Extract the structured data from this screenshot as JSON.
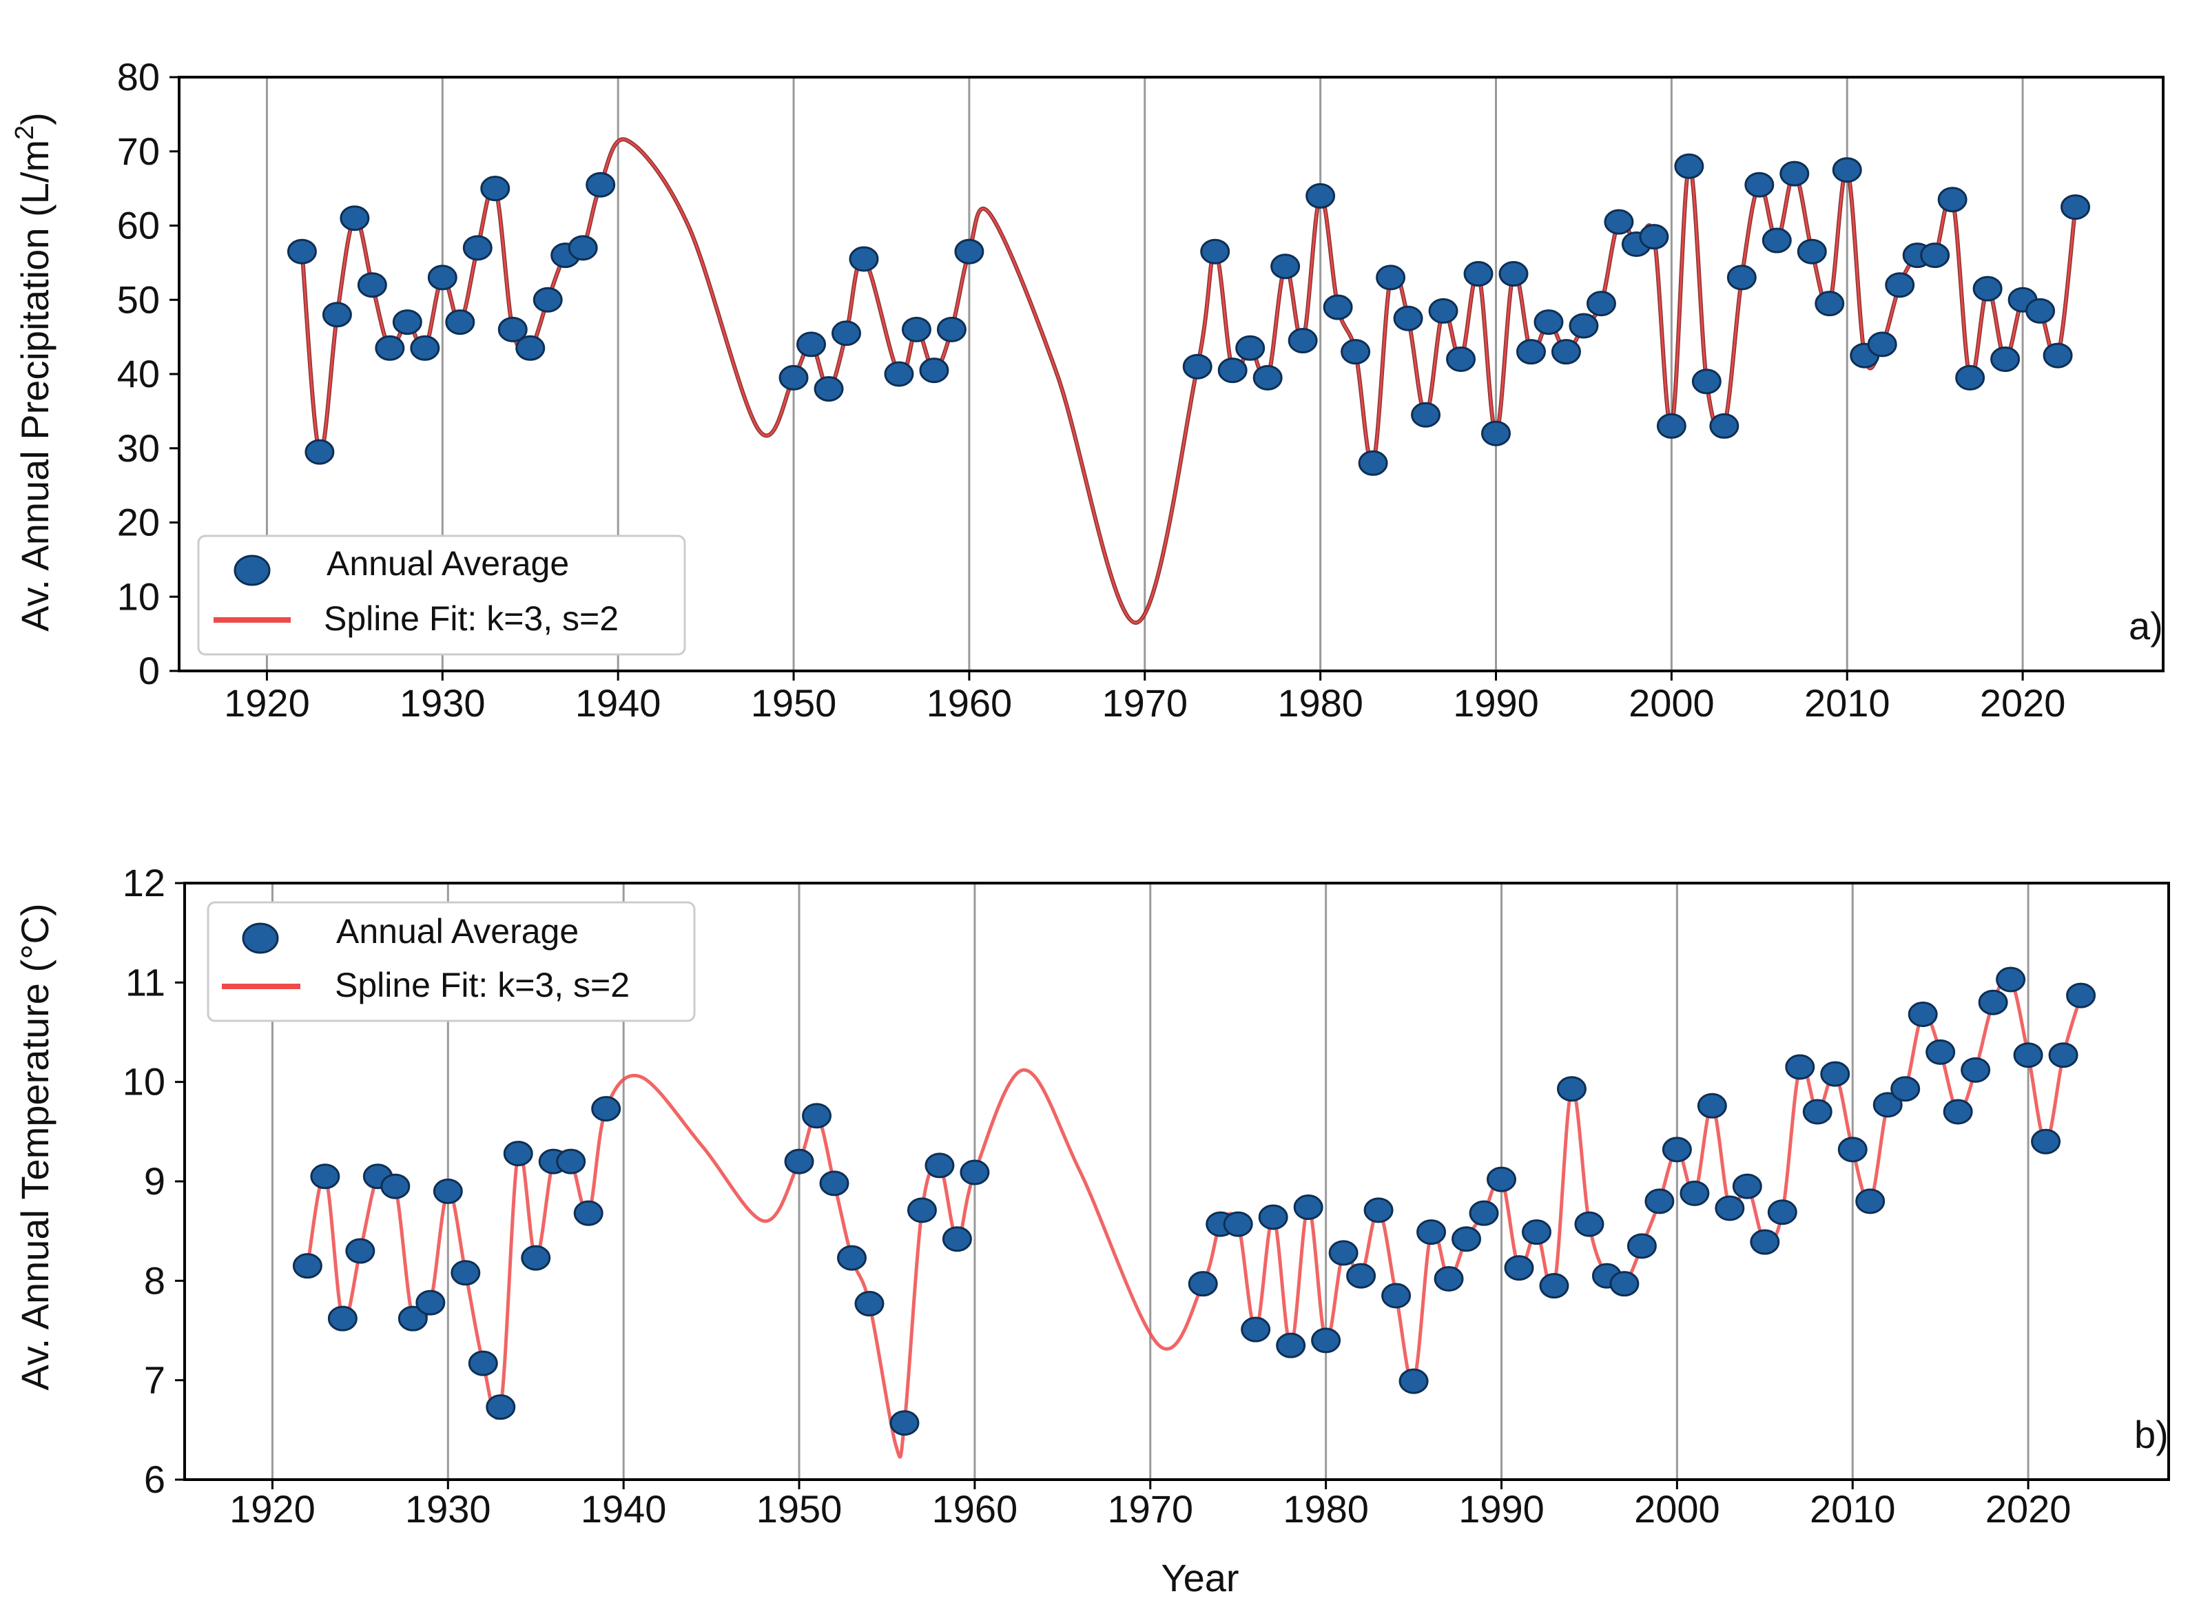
{
  "chart_data": [
    {
      "type": "scatter",
      "panel_label": "a)",
      "xlabel": "",
      "ylabel": "Av. Annual Precipitation (L/m²)",
      "xlim": [
        1915,
        2028
      ],
      "ylim": [
        0,
        80
      ],
      "x_ticks": [
        1920,
        1930,
        1940,
        1950,
        1960,
        1970,
        1980,
        1990,
        2000,
        2010,
        2020
      ],
      "y_ticks": [
        0,
        10,
        20,
        30,
        40,
        50,
        60,
        70,
        80
      ],
      "grid": "vertical",
      "legend_position": "lower-left",
      "series": [
        {
          "name": "Annual Average",
          "color": "#1f5fa0",
          "x": [
            1922,
            1923,
            1924,
            1925,
            1926,
            1927,
            1928,
            1929,
            1930,
            1931,
            1932,
            1933,
            1934,
            1935,
            1936,
            1937,
            1938,
            1939,
            1950,
            1951,
            1952,
            1953,
            1954,
            1956,
            1957,
            1958,
            1959,
            1960,
            1973,
            1974,
            1975,
            1976,
            1977,
            1978,
            1979,
            1980,
            1981,
            1982,
            1983,
            1984,
            1985,
            1986,
            1987,
            1988,
            1989,
            1990,
            1991,
            1992,
            1993,
            1994,
            1995,
            1996,
            1997,
            1998,
            1999,
            2000,
            2001,
            2002,
            2003,
            2004,
            2005,
            2006,
            2007,
            2008,
            2009,
            2010,
            2011,
            2012,
            2013,
            2014,
            2015,
            2016,
            2017,
            2018,
            2019,
            2020,
            2021,
            2022,
            2023
          ],
          "y": [
            56.5,
            29.5,
            48,
            61,
            52,
            43.5,
            47,
            43.5,
            53,
            47,
            57,
            65,
            46,
            43.5,
            50,
            56,
            57,
            65.5,
            39.5,
            44,
            38,
            45.5,
            55.5,
            40,
            46,
            40.5,
            46,
            56.5,
            41,
            56.5,
            40.5,
            43.5,
            39.5,
            54.5,
            44.5,
            64,
            49,
            43,
            28,
            53,
            47.5,
            34.5,
            48.5,
            42,
            53.5,
            32,
            53.5,
            43,
            47,
            43,
            46.5,
            49.5,
            60.5,
            57.5,
            58.5,
            33,
            68,
            39,
            33,
            53,
            65.5,
            58,
            67,
            56.5,
            49.5,
            67.5,
            42.5,
            44,
            52,
            56,
            56,
            63.5,
            39.5,
            51.5,
            42,
            50,
            48.5,
            42.5,
            62.5
          ]
        },
        {
          "name": "Spline Fit: k=3, s=2",
          "color": "#ef4a4a",
          "gap_knots": [
            [
              1939,
              65.5
            ],
            [
              1940.5,
              71.5
            ],
            [
              1944,
              60
            ],
            [
              1948,
              32.5
            ],
            [
              1950,
              39.5
            ],
            [
              1954,
              55.5
            ],
            [
              1956,
              40
            ],
            [
              1958,
              40.5
            ],
            [
              1960,
              56.5
            ],
            [
              1961.2,
              61.5
            ],
            [
              1965,
              40
            ],
            [
              1969.5,
              6.5
            ],
            [
              1973,
              41
            ]
          ]
        }
      ]
    },
    {
      "type": "scatter",
      "panel_label": "b)",
      "xlabel": "Year",
      "ylabel": "Av. Annual Temperature (°C)",
      "xlim": [
        1915,
        2028
      ],
      "ylim": [
        6,
        12
      ],
      "x_ticks": [
        1920,
        1930,
        1940,
        1950,
        1960,
        1970,
        1980,
        1990,
        2000,
        2010,
        2020
      ],
      "y_ticks": [
        6,
        7,
        8,
        9,
        10,
        11,
        12
      ],
      "grid": "vertical",
      "legend_position": "top-left",
      "series": [
        {
          "name": "Annual Average",
          "color": "#1f5fa0",
          "x": [
            1922,
            1923,
            1924,
            1925,
            1926,
            1927,
            1928,
            1929,
            1930,
            1931,
            1932,
            1933,
            1934,
            1935,
            1936,
            1937,
            1938,
            1939,
            1950,
            1951,
            1952,
            1953,
            1954,
            1956,
            1957,
            1958,
            1959,
            1960,
            1973,
            1974,
            1975,
            1976,
            1977,
            1978,
            1979,
            1980,
            1981,
            1982,
            1983,
            1984,
            1985,
            1986,
            1987,
            1988,
            1989,
            1990,
            1991,
            1992,
            1993,
            1994,
            1995,
            1996,
            1997,
            1998,
            1999,
            2000,
            2001,
            2002,
            2003,
            2004,
            2005,
            2006,
            2007,
            2008,
            2009,
            2010,
            2011,
            2012,
            2013,
            2014,
            2015,
            2016,
            2017,
            2018,
            2019,
            2020,
            2021,
            2022,
            2023
          ],
          "y": [
            8.15,
            9.05,
            7.62,
            8.3,
            9.05,
            8.95,
            7.62,
            7.78,
            8.9,
            8.08,
            7.17,
            6.73,
            9.28,
            8.23,
            9.2,
            9.2,
            8.68,
            9.73,
            9.2,
            9.66,
            8.98,
            8.23,
            7.77,
            6.57,
            8.71,
            9.16,
            8.42,
            9.09,
            7.97,
            8.57,
            8.57,
            7.51,
            8.64,
            7.35,
            8.74,
            7.4,
            8.28,
            8.05,
            8.71,
            7.85,
            6.99,
            8.49,
            8.02,
            8.42,
            8.68,
            9.02,
            8.13,
            8.49,
            7.95,
            9.93,
            8.57,
            8.05,
            7.97,
            8.35,
            8.8,
            9.32,
            8.88,
            9.76,
            8.73,
            8.95,
            8.39,
            8.69,
            10.15,
            9.7,
            10.08,
            9.32,
            8.8,
            9.77,
            9.93,
            10.68,
            10.3,
            9.7,
            10.12,
            10.8,
            11.03,
            10.27,
            9.4,
            10.27,
            10.87
          ]
        },
        {
          "name": "Spline Fit: k=3, s=2",
          "color": "#ef4a4a",
          "gap_knots": [
            [
              1939,
              9.73
            ],
            [
              1941,
              10.05
            ],
            [
              1944.5,
              9.35
            ],
            [
              1948,
              8.6
            ],
            [
              1950,
              9.2
            ],
            [
              1954,
              7.77
            ],
            [
              1955.5,
              6.35
            ],
            [
              1956,
              6.57
            ],
            [
              1958,
              9.16
            ],
            [
              1960,
              9.09
            ],
            [
              1962.8,
              10.12
            ],
            [
              1966,
              9.1
            ],
            [
              1970.5,
              7.35
            ],
            [
              1973,
              7.97
            ]
          ]
        }
      ]
    }
  ]
}
